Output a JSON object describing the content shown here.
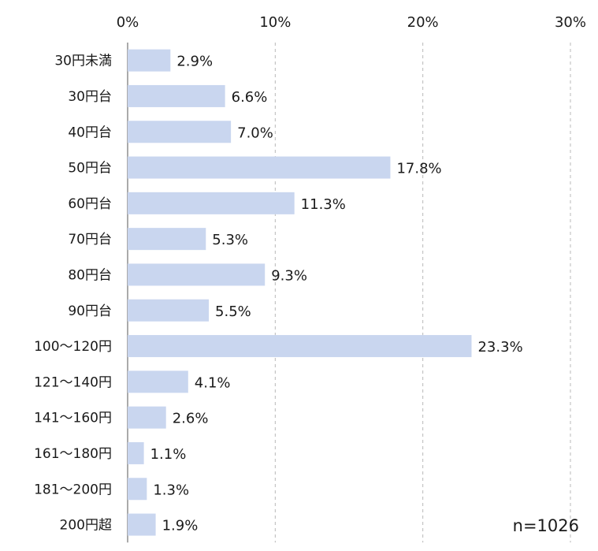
{
  "chart_data": {
    "type": "bar",
    "orientation": "horizontal",
    "categories": [
      "30円未満",
      "30円台",
      "40円台",
      "50円台",
      "60円台",
      "70円台",
      "80円台",
      "90円台",
      "100～120円",
      "121～140円",
      "141～160円",
      "161～180円",
      "181～200円",
      "200円超"
    ],
    "values": [
      2.9,
      6.6,
      7.0,
      17.8,
      11.3,
      5.3,
      9.3,
      5.5,
      23.3,
      4.1,
      2.6,
      1.1,
      1.3,
      1.9
    ],
    "value_labels": [
      "2.9%",
      "6.6%",
      "7.0%",
      "17.8%",
      "11.3%",
      "5.3%",
      "9.3%",
      "5.5%",
      "23.3%",
      "4.1%",
      "2.6%",
      "1.1%",
      "1.3%",
      "1.9%"
    ],
    "xlim": [
      0,
      30
    ],
    "x_ticks": [
      0,
      10,
      20,
      30
    ],
    "x_tick_labels": [
      "0%",
      "10%",
      "20%",
      "30%"
    ],
    "x_axis_position": "top",
    "grid": true,
    "bar_color": "#c9d6ef",
    "note": "n=1026"
  }
}
